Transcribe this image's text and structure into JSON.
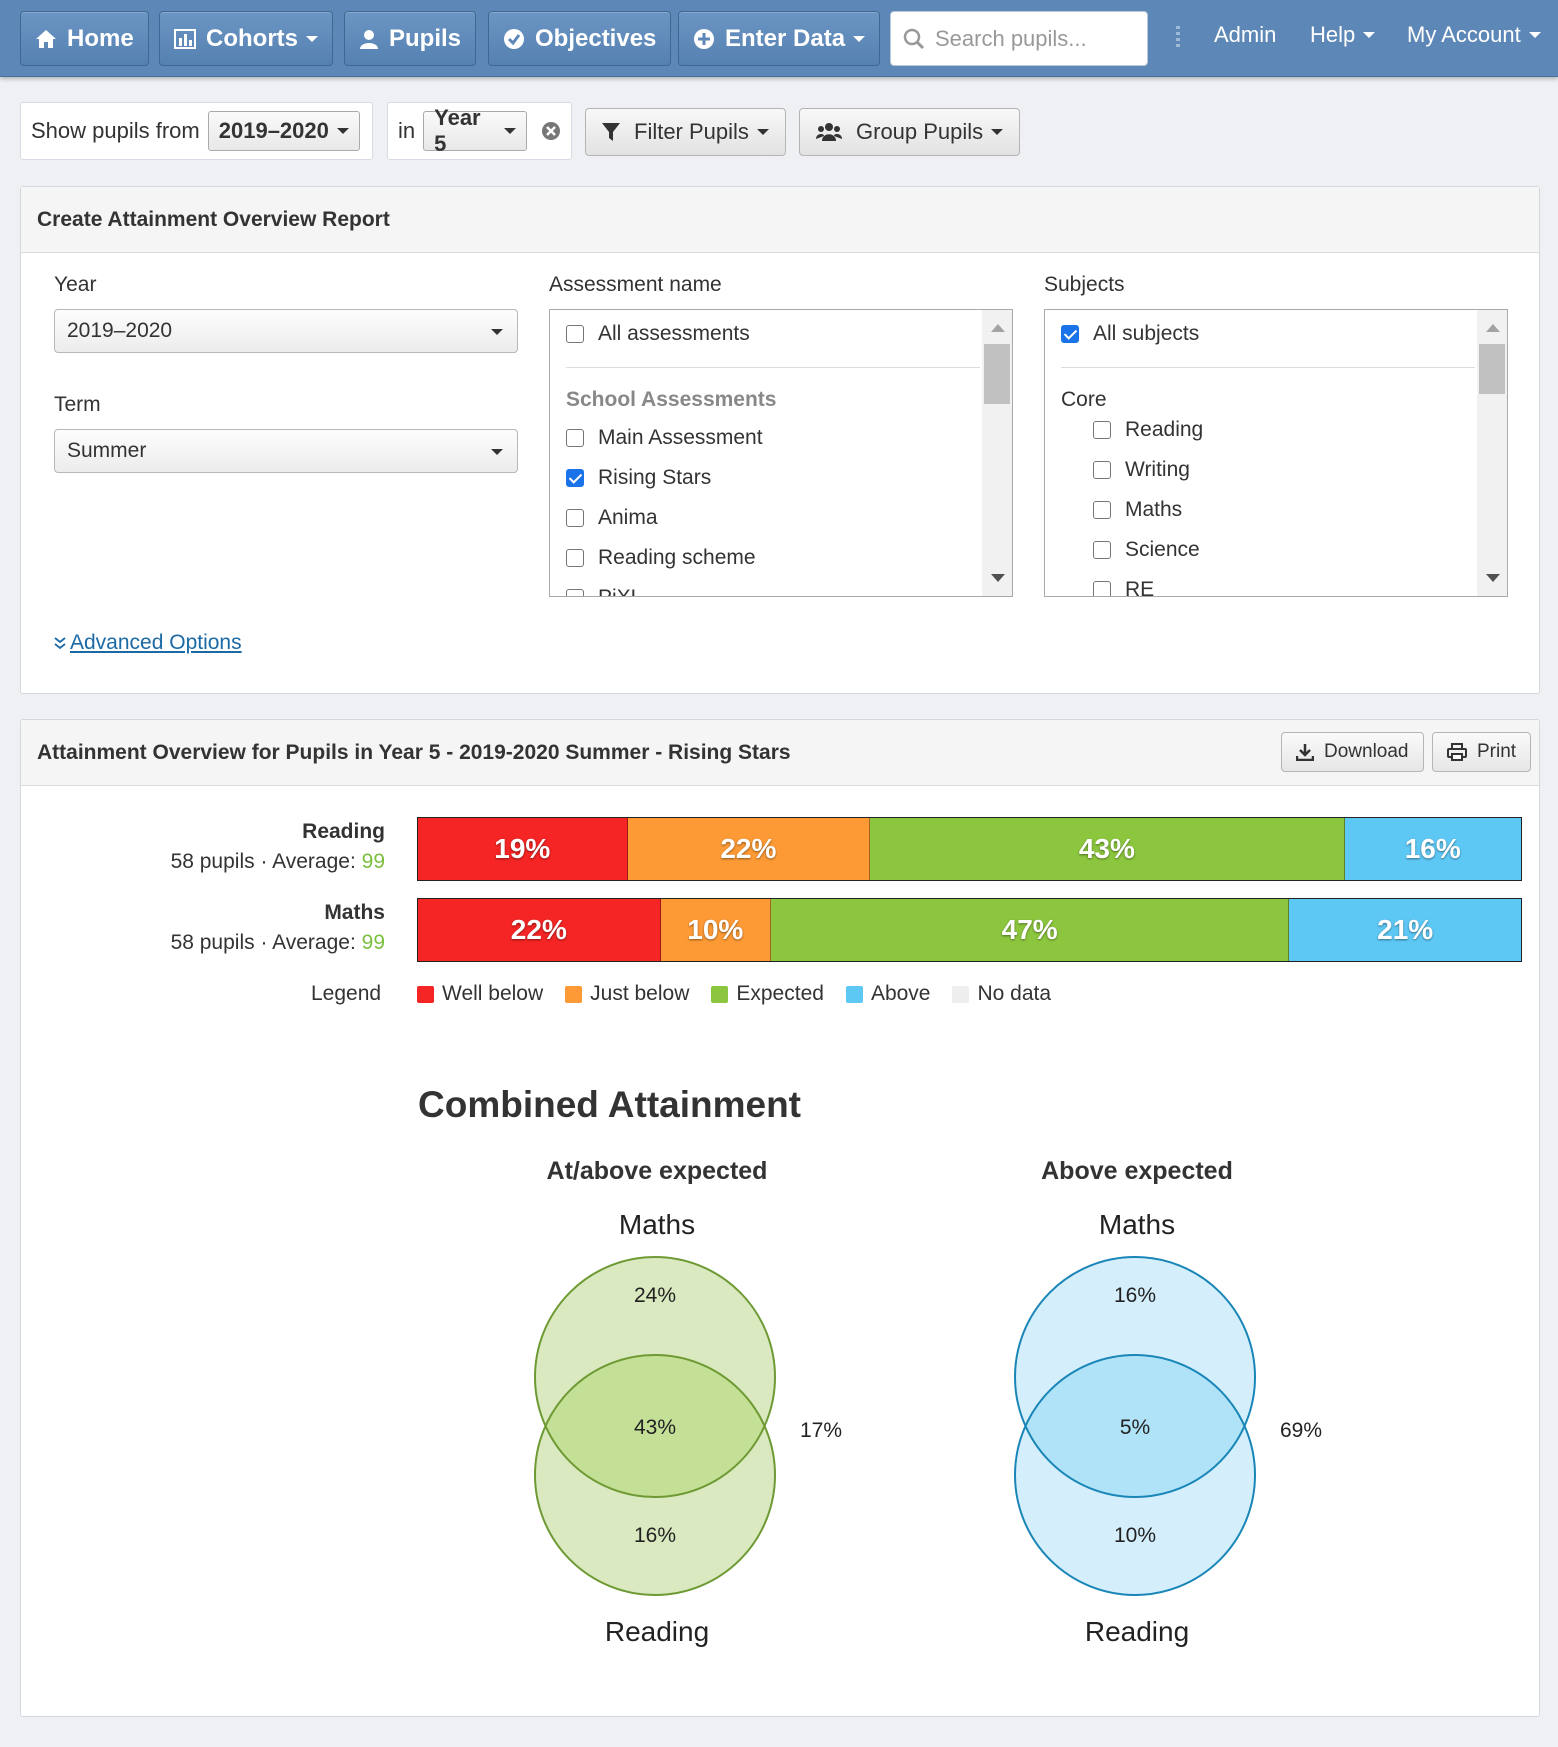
{
  "nav": {
    "home": "Home",
    "cohorts": "Cohorts",
    "pupils": "Pupils",
    "objectives": "Objectives",
    "enter_data": "Enter Data",
    "search_placeholder": "Search pupils...",
    "admin": "Admin",
    "help": "Help",
    "my_account": "My Account"
  },
  "toolbar": {
    "show_pupils_from_label": "Show pupils from",
    "year_value": "2019–2020",
    "in_label": "in",
    "cohort_value": "Year 5",
    "filter_label": "Filter Pupils",
    "group_label": "Group Pupils"
  },
  "report_form": {
    "title": "Create Attainment Overview Report",
    "year_label": "Year",
    "year_value": "2019–2020",
    "term_label": "Term",
    "term_value": "Summer",
    "assessment_label": "Assessment name",
    "assessments": {
      "all_label": "All assessments",
      "all_checked": false,
      "group_label": "School Assessments",
      "items": [
        {
          "label": "Main Assessment",
          "checked": false
        },
        {
          "label": "Rising Stars",
          "checked": true
        },
        {
          "label": "Anima",
          "checked": false
        },
        {
          "label": "Reading scheme",
          "checked": false
        },
        {
          "label": "PiXL",
          "checked": false
        }
      ]
    },
    "subjects_label": "Subjects",
    "subjects": {
      "all_label": "All subjects",
      "all_checked": true,
      "group_label": "Core",
      "items": [
        {
          "label": "Reading",
          "checked": false
        },
        {
          "label": "Writing",
          "checked": false
        },
        {
          "label": "Maths",
          "checked": false
        },
        {
          "label": "Science",
          "checked": false
        },
        {
          "label": "RE",
          "checked": false
        }
      ]
    },
    "advanced_options": "Advanced Options"
  },
  "overview": {
    "title": "Attainment Overview for Pupils in Year 5 - 2019-2020 Summer - Rising Stars",
    "download_label": "Download",
    "print_label": "Print",
    "rows": [
      {
        "subject": "Reading",
        "pupils_text": "58 pupils · Average: ",
        "average": "99",
        "segments": [
          {
            "band": "Well below",
            "value": 19,
            "label": "19%"
          },
          {
            "band": "Just below",
            "value": 22,
            "label": "22%"
          },
          {
            "band": "Expected",
            "value": 43,
            "label": "43%"
          },
          {
            "band": "Above",
            "value": 16,
            "label": "16%"
          }
        ]
      },
      {
        "subject": "Maths",
        "pupils_text": "58 pupils · Average: ",
        "average": "99",
        "segments": [
          {
            "band": "Well below",
            "value": 22,
            "label": "22%"
          },
          {
            "band": "Just below",
            "value": 10,
            "label": "10%"
          },
          {
            "band": "Expected",
            "value": 47,
            "label": "47%"
          },
          {
            "band": "Above",
            "value": 21,
            "label": "21%"
          }
        ]
      }
    ],
    "legend_title": "Legend",
    "legend": [
      {
        "label": "Well below",
        "color": "#f52525"
      },
      {
        "label": "Just below",
        "color": "#fd9a35"
      },
      {
        "label": "Expected",
        "color": "#8cc63e"
      },
      {
        "label": "Above",
        "color": "#5ec8f5"
      },
      {
        "label": "No data",
        "color": "#eeeeee"
      }
    ]
  },
  "combined": {
    "title": "Combined Attainment",
    "venns": [
      {
        "title": "At/above expected",
        "top_set": "Maths",
        "bottom_set": "Reading",
        "top_only": "24%",
        "overlap": "43%",
        "bottom_only": "16%",
        "outside": "17%",
        "fill": "#dae9c0",
        "overlap_fill": "#c4e096",
        "stroke": "#6e9a34"
      },
      {
        "title": "Above expected",
        "top_set": "Maths",
        "bottom_set": "Reading",
        "top_only": "16%",
        "overlap": "5%",
        "bottom_only": "10%",
        "outside": "69%",
        "fill": "#d4effb",
        "overlap_fill": "#b0e3f8",
        "stroke": "#1a86b8"
      }
    ]
  },
  "colors": {
    "navbar": "#5d87b6",
    "link": "#1b6aa6",
    "average": "#7bbf3e"
  }
}
